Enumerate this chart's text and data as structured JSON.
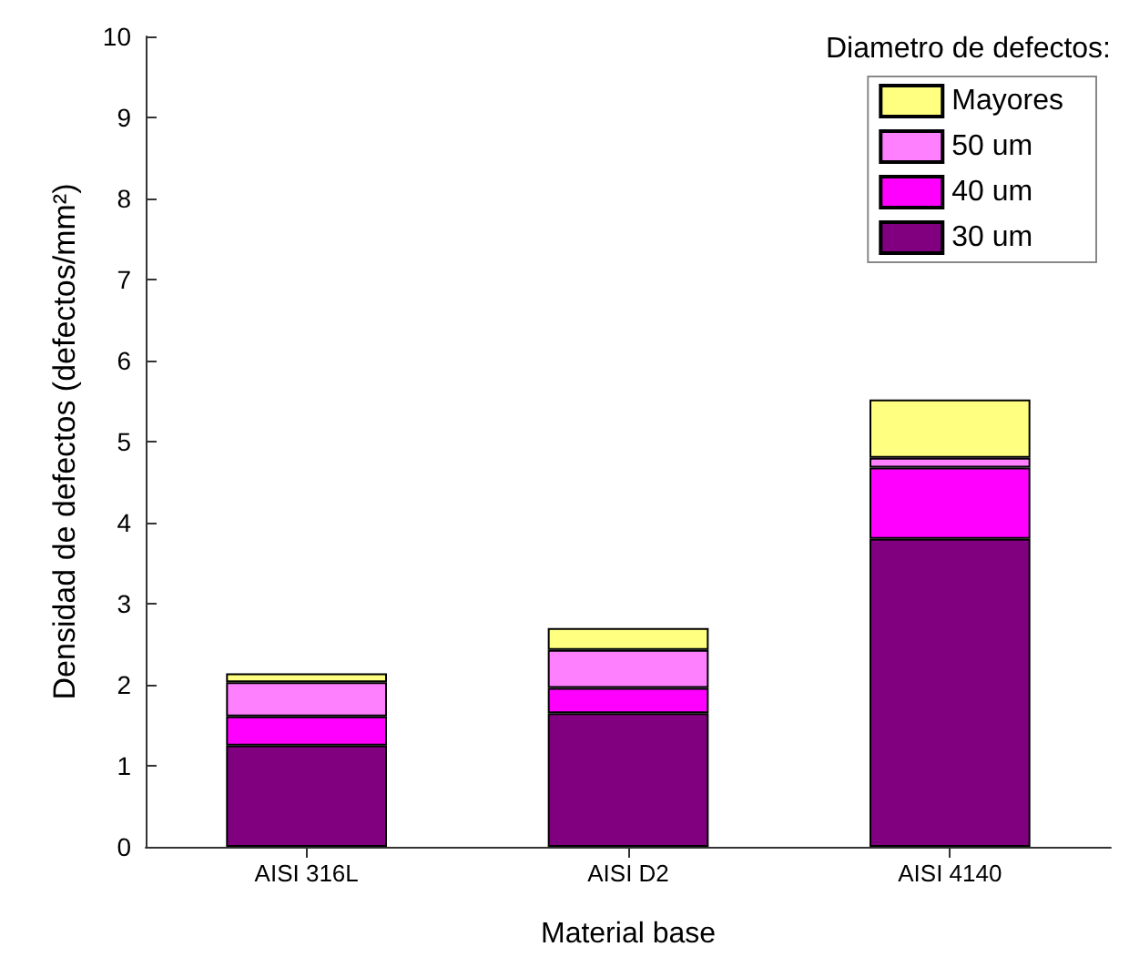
{
  "chart_data": {
    "type": "bar",
    "stacked": true,
    "xlabel": "Material base",
    "ylabel": "Densidad de defectos (defectos/mm²)",
    "legend_title": "Diametro de defectos:",
    "legend": "top right",
    "grid": false,
    "categories": [
      "AISI 316L",
      "AISI D2",
      "AISI 4140"
    ],
    "ylim": [
      0,
      10
    ],
    "yticks": [
      0,
      1,
      2,
      3,
      4,
      5,
      6,
      7,
      8,
      9,
      10
    ],
    "series": [
      {
        "name": "30 um",
        "color": "#800080",
        "values": [
          1.25,
          1.65,
          3.8
        ]
      },
      {
        "name": "40 um",
        "color": "#ff00ff",
        "values": [
          0.36,
          0.31,
          0.88
        ]
      },
      {
        "name": "50 um",
        "color": "#ff80ff",
        "values": [
          0.42,
          0.47,
          0.12
        ]
      },
      {
        "name": "Mayores",
        "color": "#ffff80",
        "values": [
          0.11,
          0.27,
          0.72
        ]
      }
    ]
  }
}
